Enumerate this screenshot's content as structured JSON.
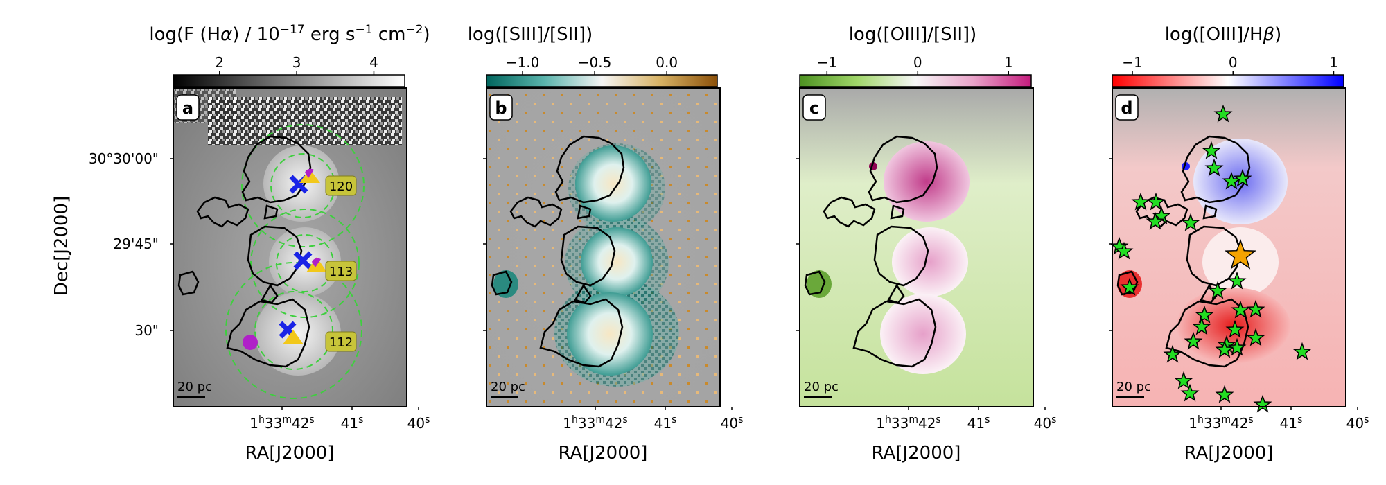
{
  "figure": {
    "y_label": "Dec[J2000]",
    "x_label": "RA[J2000]",
    "y_ticks": [
      "30°30'00\"",
      "29'45\"",
      "30\""
    ],
    "x_tick_main": "1",
    "x_tick_h": "h",
    "x_tick_mid": "33",
    "x_tick_m": "m",
    "x_tick_sec": "42",
    "x_tick_s": "s",
    "x_ticks_rest": [
      "41",
      "40"
    ],
    "scale_bar_label": "20 pc"
  },
  "chart_data": [
    {
      "type": "heatmap",
      "panel_letter": "a",
      "title_prefix": "log(F (H",
      "title_alpha": "α",
      "title_mid": ") / 10",
      "title_exp1": "−17",
      "title_unit1": " erg s",
      "title_exp2": "−1",
      "title_unit2": " cm",
      "title_exp3": "−2",
      "title_suffix": ")",
      "colormap": "gray",
      "colorbar_range": [
        1.4,
        4.4
      ],
      "colorbar_ticks": [
        2,
        3,
        4
      ],
      "colorbar_tick_labels": [
        "2",
        "3",
        "4"
      ],
      "regions": [
        {
          "label": "120",
          "color": "#c7c43a"
        },
        {
          "label": "113",
          "color": "#c7c43a"
        },
        {
          "label": "112",
          "color": "#c7c43a"
        }
      ],
      "markers": [
        "blue-cross",
        "yellow-triangle",
        "magenta-circle"
      ]
    },
    {
      "type": "heatmap",
      "panel_letter": "b",
      "title": "log([SIII]/[SII])",
      "colormap": "BrBG_r",
      "colorbar_range": [
        -1.25,
        0.35
      ],
      "colorbar_ticks": [
        -1.0,
        -0.5,
        0.0
      ],
      "colorbar_tick_labels": [
        "−1.0",
        "−0.5",
        "0.0"
      ]
    },
    {
      "type": "heatmap",
      "panel_letter": "c",
      "title": "log([OIII]/[SII])",
      "colormap": "PiYG_r",
      "colorbar_range": [
        -1.3,
        1.25
      ],
      "colorbar_ticks": [
        -1,
        0,
        1
      ],
      "colorbar_tick_labels": [
        "−1",
        "0",
        "1"
      ]
    },
    {
      "type": "heatmap",
      "panel_letter": "d",
      "title_prefix": "log([OIII]/H",
      "title_beta": "β",
      "title_suffix": ")",
      "colormap": "bwr_r",
      "colorbar_range": [
        -1.2,
        1.1
      ],
      "colorbar_ticks": [
        -1,
        0,
        1
      ],
      "colorbar_tick_labels": [
        "−1",
        "0",
        "1"
      ],
      "markers": [
        "green-stars",
        "orange-star"
      ]
    }
  ],
  "colors": {
    "region_box": "#c7c43a",
    "circle": "#3ecf3e",
    "cross": "#1a24e6",
    "triangle": "#f2c81a",
    "circle_marker": "#b020c8",
    "star_green": "#22dd22",
    "star_orange": "#f5a300"
  }
}
